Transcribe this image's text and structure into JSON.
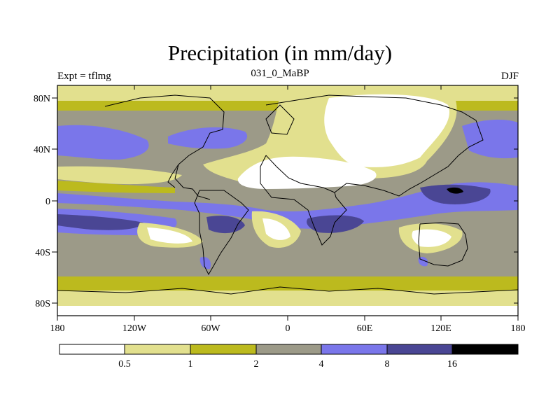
{
  "header": {
    "title": "Precipitation (in mm/day)",
    "left": "Expt = tflmg",
    "center": "031_0_MaBP",
    "right": "DJF"
  },
  "axes": {
    "y_ticks": [
      "80N",
      "40N",
      "0",
      "40S",
      "80S"
    ],
    "x_ticks": [
      "180",
      "120W",
      "60W",
      "0",
      "60E",
      "120E",
      "180"
    ]
  },
  "legend": {
    "colors": [
      "#ffffff",
      "#e2e08e",
      "#bcba1e",
      "#9c9a88",
      "#7a76ea",
      "#4a4694",
      "#000000"
    ],
    "labels": [
      "0.5",
      "1",
      "2",
      "4",
      "8",
      "16"
    ]
  }
}
